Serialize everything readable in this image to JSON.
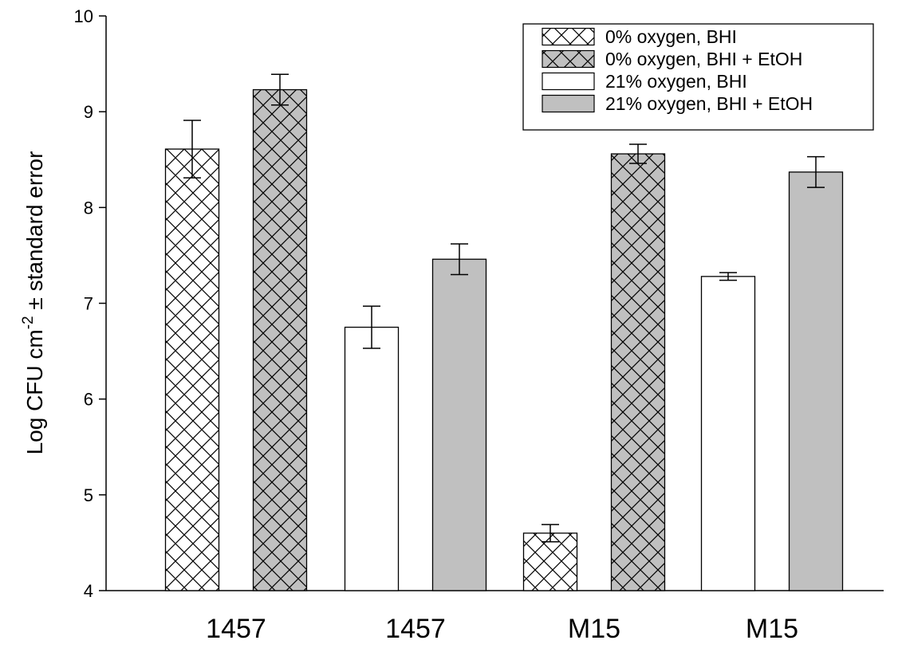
{
  "chart_data": {
    "type": "bar",
    "title": "",
    "xlabel": "",
    "ylabel": {
      "prefix": "Log CFU cm",
      "superscript": "-2",
      "suffix": " ± standard error"
    },
    "ylim": [
      4,
      10
    ],
    "yticks": [
      4,
      5,
      6,
      7,
      8,
      9,
      10
    ],
    "grid": false,
    "legend_position": "top-right",
    "legend": [
      {
        "label": "0% oxygen, BHI",
        "fill": "#ffffff",
        "hatch": "crosshatch"
      },
      {
        "label": "0% oxygen, BHI + EtOH",
        "fill": "#c0c0c0",
        "hatch": "crosshatch"
      },
      {
        "label": "21% oxygen, BHI",
        "fill": "#ffffff",
        "hatch": "none"
      },
      {
        "label": "21% oxygen, BHI + EtOH",
        "fill": "#c0c0c0",
        "hatch": "none"
      }
    ],
    "categories": [
      "1457",
      "1457",
      "M15",
      "M15"
    ],
    "bars": [
      {
        "group": 0,
        "style": 0,
        "value": 8.61,
        "error": 0.3
      },
      {
        "group": 0,
        "style": 1,
        "value": 9.23,
        "error": 0.16
      },
      {
        "group": 1,
        "style": 2,
        "value": 6.75,
        "error": 0.22
      },
      {
        "group": 1,
        "style": 3,
        "value": 7.46,
        "error": 0.16
      },
      {
        "group": 2,
        "style": 0,
        "value": 4.6,
        "error": 0.09
      },
      {
        "group": 2,
        "style": 1,
        "value": 8.56,
        "error": 0.1
      },
      {
        "group": 3,
        "style": 2,
        "value": 7.28,
        "error": 0.04
      },
      {
        "group": 3,
        "style": 3,
        "value": 8.37,
        "error": 0.16
      }
    ]
  }
}
